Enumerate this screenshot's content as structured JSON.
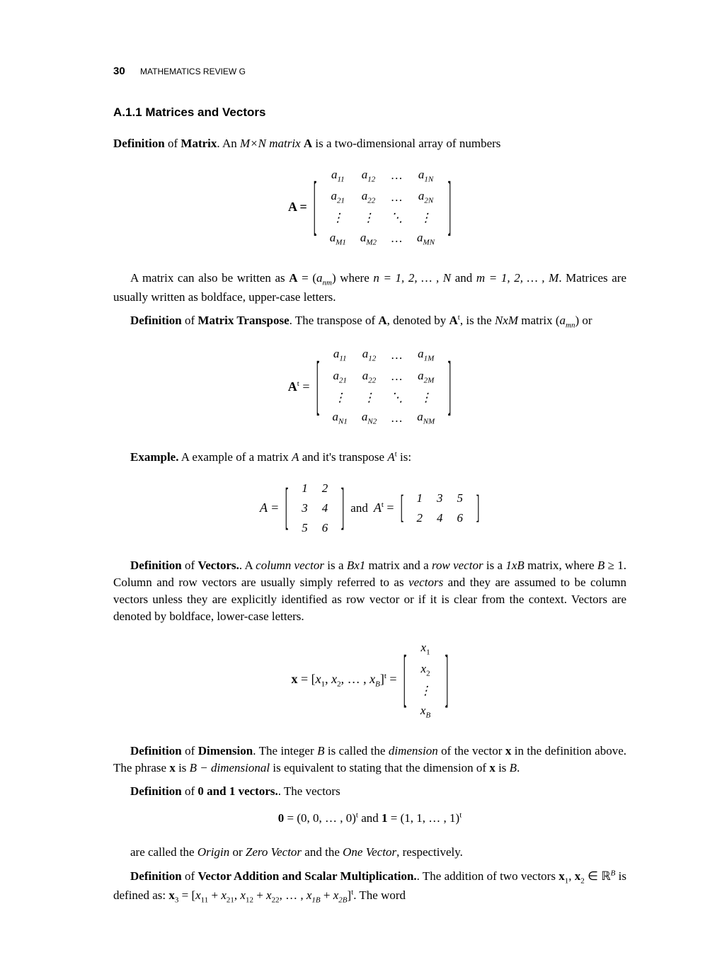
{
  "runningHead": {
    "pageNumber": "30",
    "text": "MATHEMATICS REVIEW G"
  },
  "sectionHeading": "A.1.1   Matrices and Vectors",
  "colors": {
    "text": "#000000",
    "background": "#ffffff"
  },
  "typography": {
    "body_font": "Times New Roman",
    "heading_font": "Arial",
    "body_fontsize_pt": 13,
    "heading_fontsize_pt": 13,
    "runninghead_fontsize_pt": 9
  },
  "defMatrixLead": {
    "pre": "Definition",
    "of": " of ",
    "bold2": "Matrix",
    "rest1": ". An ",
    "ital": "M×N matrix",
    "rest2": " is a two-dimensional array of numbers",
    "bfA": "A"
  },
  "matrixA": {
    "lhs": "A =",
    "rows": [
      [
        "a",
        "11",
        "a",
        "12",
        "…",
        "a",
        "1N"
      ],
      [
        "a",
        "21",
        "a",
        "22",
        "…",
        "a",
        "2N"
      ],
      [
        "⋮",
        "",
        "⋮",
        "",
        "⋱",
        "⋮",
        ""
      ],
      [
        "a",
        "M1",
        "a",
        "M2",
        "…",
        "a",
        "MN"
      ]
    ]
  },
  "pMatrixWritten": {
    "t1": "A matrix can also be written as ",
    "A": "A",
    "eq": " = (",
    "anm": "a",
    "nm": "nm",
    "t2": ") where ",
    "n": "n",
    "rng1": " = 1, 2, … , N",
    "and": " and ",
    "m": "m",
    "rng2": " = 1, 2, … , M",
    "t3": ". Matrices are usually written as boldface, upper-case letters."
  },
  "defTranspose": {
    "pre": "Definition",
    "of": " of ",
    "bold2": "Matrix Transpose",
    "t1": ". The transpose of ",
    "A": "A",
    "t2": ", denoted by ",
    "At": "A",
    "sup": "t",
    "t3": ", is the ",
    "NxM": "NxM",
    "t4": " matrix (",
    "amn": "a",
    "mn": "mn",
    "t5": ") or"
  },
  "matrixAt_lhs": "A",
  "matrixAt_sup": "t",
  "matrixAt": {
    "rows": [
      [
        "a",
        "11",
        "a",
        "12",
        "…",
        "a",
        "1M"
      ],
      [
        "a",
        "21",
        "a",
        "22",
        "…",
        "a",
        "2M"
      ],
      [
        "⋮",
        "",
        "⋮",
        "",
        "⋱",
        "⋮",
        ""
      ],
      [
        "a",
        "N1",
        "a",
        "N2",
        "…",
        "a",
        "NM"
      ]
    ]
  },
  "exampleLead": {
    "pre": "Example.",
    "t1": " A example of a matrix ",
    "A": "A",
    "t2": " and it's transpose ",
    "At": "A",
    "sup": "t",
    "t3": " is:"
  },
  "exA": {
    "lhs": "A =",
    "rows": [
      [
        "1",
        "2"
      ],
      [
        "3",
        "4"
      ],
      [
        "5",
        "6"
      ]
    ]
  },
  "exAnd": "  and  ",
  "exAt": {
    "lhs": "A",
    "sup": "t",
    "eq": " =",
    "rows": [
      [
        "1",
        "3",
        "5"
      ],
      [
        "2",
        "4",
        "6"
      ]
    ]
  },
  "defVectors": {
    "pre": "Definition",
    "of": " of ",
    "bold2": "Vectors.",
    "t1": ". A ",
    "cv": "column vector",
    "t2": " is a ",
    "Bx1": "Bx1",
    "t3": " matrix and a ",
    "rv": "row vector",
    "t4": " is a ",
    "oneXB": "1xB",
    "t5": " matrix, where ",
    "B": "B",
    "geq": " ≥ 1",
    "t6": ". Column and row vectors are usually simply referred to as ",
    "vec": "vectors",
    "t7": " and they are assumed to be column vectors unless they are explicitly identified as row vector or if it is clear from the context. Vectors are denoted by boldface, lower-case letters."
  },
  "vecX": {
    "lhs": "x",
    "eq1": " = [",
    "x1": "x",
    "s1": "1",
    "c1": ", ",
    "x2": "x",
    "s2": "2",
    "c2": ", … , ",
    "xB": "x",
    "sB": "B",
    "eq2": "]",
    "sup": "t",
    "eq3": " =",
    "col": [
      "x₁",
      "x₂",
      "⋮",
      "x_B"
    ]
  },
  "defDimension": {
    "pre": "Definition",
    "of": " of ",
    "bold2": "Dimension",
    "t1": ". The integer ",
    "B": "B",
    "t2": " is called the ",
    "dim": "dimension",
    "t3": " of the vector ",
    "x": "x",
    "t4": " in the definition above. The phrase ",
    "x2": "x",
    "t5": " is ",
    "Bdim": "B − dimensional",
    "t6": " is equivalent to stating that the dimension of ",
    "x3": "x",
    "t7": " is ",
    "B2": "B",
    "t8": "."
  },
  "def01": {
    "pre": "Definition",
    "of": " of ",
    "bold2": "0 and 1 vectors.",
    "t1": ". The vectors"
  },
  "zeroOne": {
    "z": "0",
    "eq1": " = (0, 0, … , 0)",
    "sup1": "t",
    "and": "  and  ",
    "o": "1",
    "eq2": " = (1, 1, … , 1)",
    "sup2": "t"
  },
  "originLine": {
    "t1": "are called the ",
    "origin": "Origin",
    "t2": " or ",
    "zv": "Zero Vector",
    "t3": " and the ",
    "ov": "One Vector",
    "t4": ", respectively."
  },
  "defVecAdd": {
    "pre": "Definition",
    "of": " of ",
    "bold2": "Vector Addition and Scalar Multiplication.",
    "t1": ". The addition of two vectors ",
    "x1": "x",
    "s1": "1",
    "c": ", ",
    "x2": "x",
    "s2": "2",
    "in": " ∈ ",
    "RB": "ℝ",
    "supB": "B",
    "t2": " is defined as: ",
    "x3": "x",
    "s3": "3",
    "eq": " = [",
    "sum": "x₁₁ + x₂₁, x₁₂ + x₂₂, … , x₁B + x₂B",
    "close": "]",
    "supt": "t",
    "t3": ". The word"
  }
}
